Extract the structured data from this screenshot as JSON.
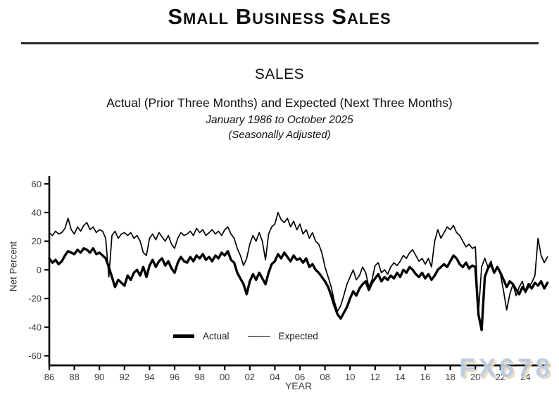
{
  "header": {
    "title": "Small Business Sales"
  },
  "subtitles": {
    "section": "SALES",
    "description": "Actual (Prior Three Months) and Expected (Next Three Months)",
    "period": "January 1986 to October 2025",
    "adjustment": "(Seasonally Adjusted)"
  },
  "watermark": {
    "text": "FX678",
    "fill": "#b7cae2",
    "shadow": "#e9d8be"
  },
  "chart_data": {
    "type": "line",
    "title": "SALES",
    "xlabel": "YEAR",
    "ylabel": "Net Percent",
    "ylim": [
      -60,
      60
    ],
    "y_ticks": [
      60,
      40,
      20,
      0,
      -20,
      -40,
      -60
    ],
    "x_tick_years": [
      1986,
      1988,
      1990,
      1992,
      1994,
      1996,
      1998,
      2000,
      2002,
      2004,
      2006,
      2008,
      2010,
      2012,
      2014,
      2016,
      2018,
      2020,
      2022,
      2024
    ],
    "x_tick_labels": [
      "86",
      "88",
      "90",
      "92",
      "94",
      "96",
      "98",
      "00",
      "02",
      "04",
      "06",
      "08",
      "10",
      "12",
      "14",
      "16",
      "18",
      "20",
      "22",
      "24"
    ],
    "grid": false,
    "line_color": "#000000",
    "legend_position": "bottom-center-inside",
    "x_unit": "decimal_year",
    "x_start": 1986.0,
    "x_step_years": 0.25,
    "n_points": 160,
    "sampling_note": "quarterly values estimated from plot, Jan 1986 - Oct 2025",
    "series": [
      {
        "name": "Actual",
        "style": "thick",
        "stroke_width": 3.4,
        "values": [
          8,
          5,
          7,
          4,
          6,
          10,
          13,
          12,
          11,
          14,
          12,
          15,
          14,
          12,
          15,
          11,
          12,
          10,
          8,
          2,
          -5,
          -12,
          -7,
          -9,
          -11,
          -4,
          -7,
          -2,
          0,
          -4,
          2,
          -5,
          3,
          7,
          2,
          6,
          8,
          3,
          6,
          1,
          -2,
          5,
          9,
          6,
          5,
          9,
          6,
          10,
          8,
          11,
          7,
          9,
          6,
          10,
          8,
          12,
          10,
          13,
          7,
          5,
          -2,
          -6,
          -10,
          -17,
          -8,
          -3,
          -7,
          -2,
          -6,
          -10,
          -2,
          4,
          6,
          11,
          8,
          12,
          9,
          6,
          10,
          7,
          8,
          5,
          8,
          2,
          4,
          0,
          -2,
          -5,
          -8,
          -12,
          -18,
          -25,
          -31,
          -34,
          -30,
          -26,
          -20,
          -15,
          -18,
          -13,
          -10,
          -8,
          -14,
          -9,
          -6,
          -3,
          -8,
          -5,
          -7,
          -4,
          -6,
          -2,
          -5,
          0,
          -2,
          2,
          0,
          -3,
          -5,
          -2,
          -6,
          -3,
          -7,
          -4,
          0,
          2,
          4,
          2,
          6,
          10,
          8,
          4,
          2,
          5,
          1,
          3,
          2,
          -31,
          -42,
          -5,
          1,
          4,
          -2,
          2,
          -2,
          -7,
          -12,
          -8,
          -10,
          -14,
          -17,
          -12,
          -15,
          -10,
          -13,
          -9,
          -11,
          -8,
          -13,
          -9
        ]
      },
      {
        "name": "Expected",
        "style": "thin",
        "stroke_width": 1.7,
        "values": [
          26,
          24,
          27,
          25,
          26,
          29,
          36,
          28,
          25,
          30,
          27,
          31,
          33,
          28,
          30,
          26,
          28,
          27,
          22,
          -5,
          24,
          27,
          22,
          25,
          26,
          24,
          26,
          22,
          24,
          20,
          12,
          10,
          22,
          25,
          21,
          26,
          23,
          20,
          24,
          18,
          15,
          22,
          26,
          24,
          25,
          27,
          24,
          29,
          26,
          28,
          24,
          26,
          28,
          25,
          27,
          24,
          28,
          30,
          25,
          22,
          15,
          10,
          3,
          8,
          18,
          24,
          20,
          26,
          20,
          7,
          25,
          30,
          32,
          40,
          35,
          33,
          36,
          30,
          34,
          28,
          32,
          25,
          28,
          22,
          26,
          20,
          18,
          12,
          2,
          -5,
          -12,
          -22,
          -29,
          -25,
          -18,
          -10,
          -5,
          0,
          -7,
          -4,
          2,
          -2,
          -12,
          -7,
          3,
          5,
          -2,
          0,
          -3,
          2,
          5,
          3,
          6,
          10,
          8,
          12,
          14,
          10,
          6,
          8,
          4,
          8,
          2,
          20,
          28,
          22,
          26,
          30,
          28,
          31,
          26,
          24,
          20,
          16,
          18,
          15,
          16,
          -30,
          2,
          8,
          2,
          6,
          -2,
          2,
          -3,
          -15,
          -28,
          -17,
          -10,
          -18,
          -12,
          -8,
          -16,
          -12,
          -9,
          -4,
          22,
          10,
          5,
          9
        ]
      }
    ]
  }
}
